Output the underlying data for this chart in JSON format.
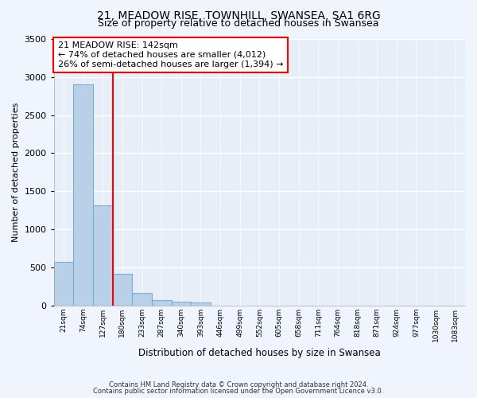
{
  "title1": "21, MEADOW RISE, TOWNHILL, SWANSEA, SA1 6RG",
  "title2": "Size of property relative to detached houses in Swansea",
  "xlabel": "Distribution of detached houses by size in Swansea",
  "ylabel": "Number of detached properties",
  "footnote1": "Contains HM Land Registry data © Crown copyright and database right 2024.",
  "footnote2": "Contains public sector information licensed under the Open Government Licence v3.0.",
  "annotation_line1": "21 MEADOW RISE: 142sqm",
  "annotation_line2": "← 74% of detached houses are smaller (4,012)",
  "annotation_line3": "26% of semi-detached houses are larger (1,394) →",
  "bar_color": "#b8d0e8",
  "bar_edge_color": "#7aafd4",
  "categories": [
    "21sqm",
    "74sqm",
    "127sqm",
    "180sqm",
    "233sqm",
    "287sqm",
    "340sqm",
    "393sqm",
    "446sqm",
    "499sqm",
    "552sqm",
    "605sqm",
    "658sqm",
    "711sqm",
    "764sqm",
    "818sqm",
    "871sqm",
    "924sqm",
    "977sqm",
    "1030sqm",
    "1083sqm"
  ],
  "values": [
    575,
    2900,
    1310,
    415,
    165,
    75,
    50,
    40,
    0,
    0,
    0,
    0,
    0,
    0,
    0,
    0,
    0,
    0,
    0,
    0,
    0
  ],
  "red_line_after_bar": 2,
  "ylim": [
    0,
    3500
  ],
  "yticks": [
    0,
    500,
    1000,
    1500,
    2000,
    2500,
    3000,
    3500
  ],
  "bg_color": "#f0f4fc",
  "plot_bg_color": "#e8eef8",
  "title_fontsize": 10,
  "subtitle_fontsize": 9,
  "annotation_fontsize": 8
}
